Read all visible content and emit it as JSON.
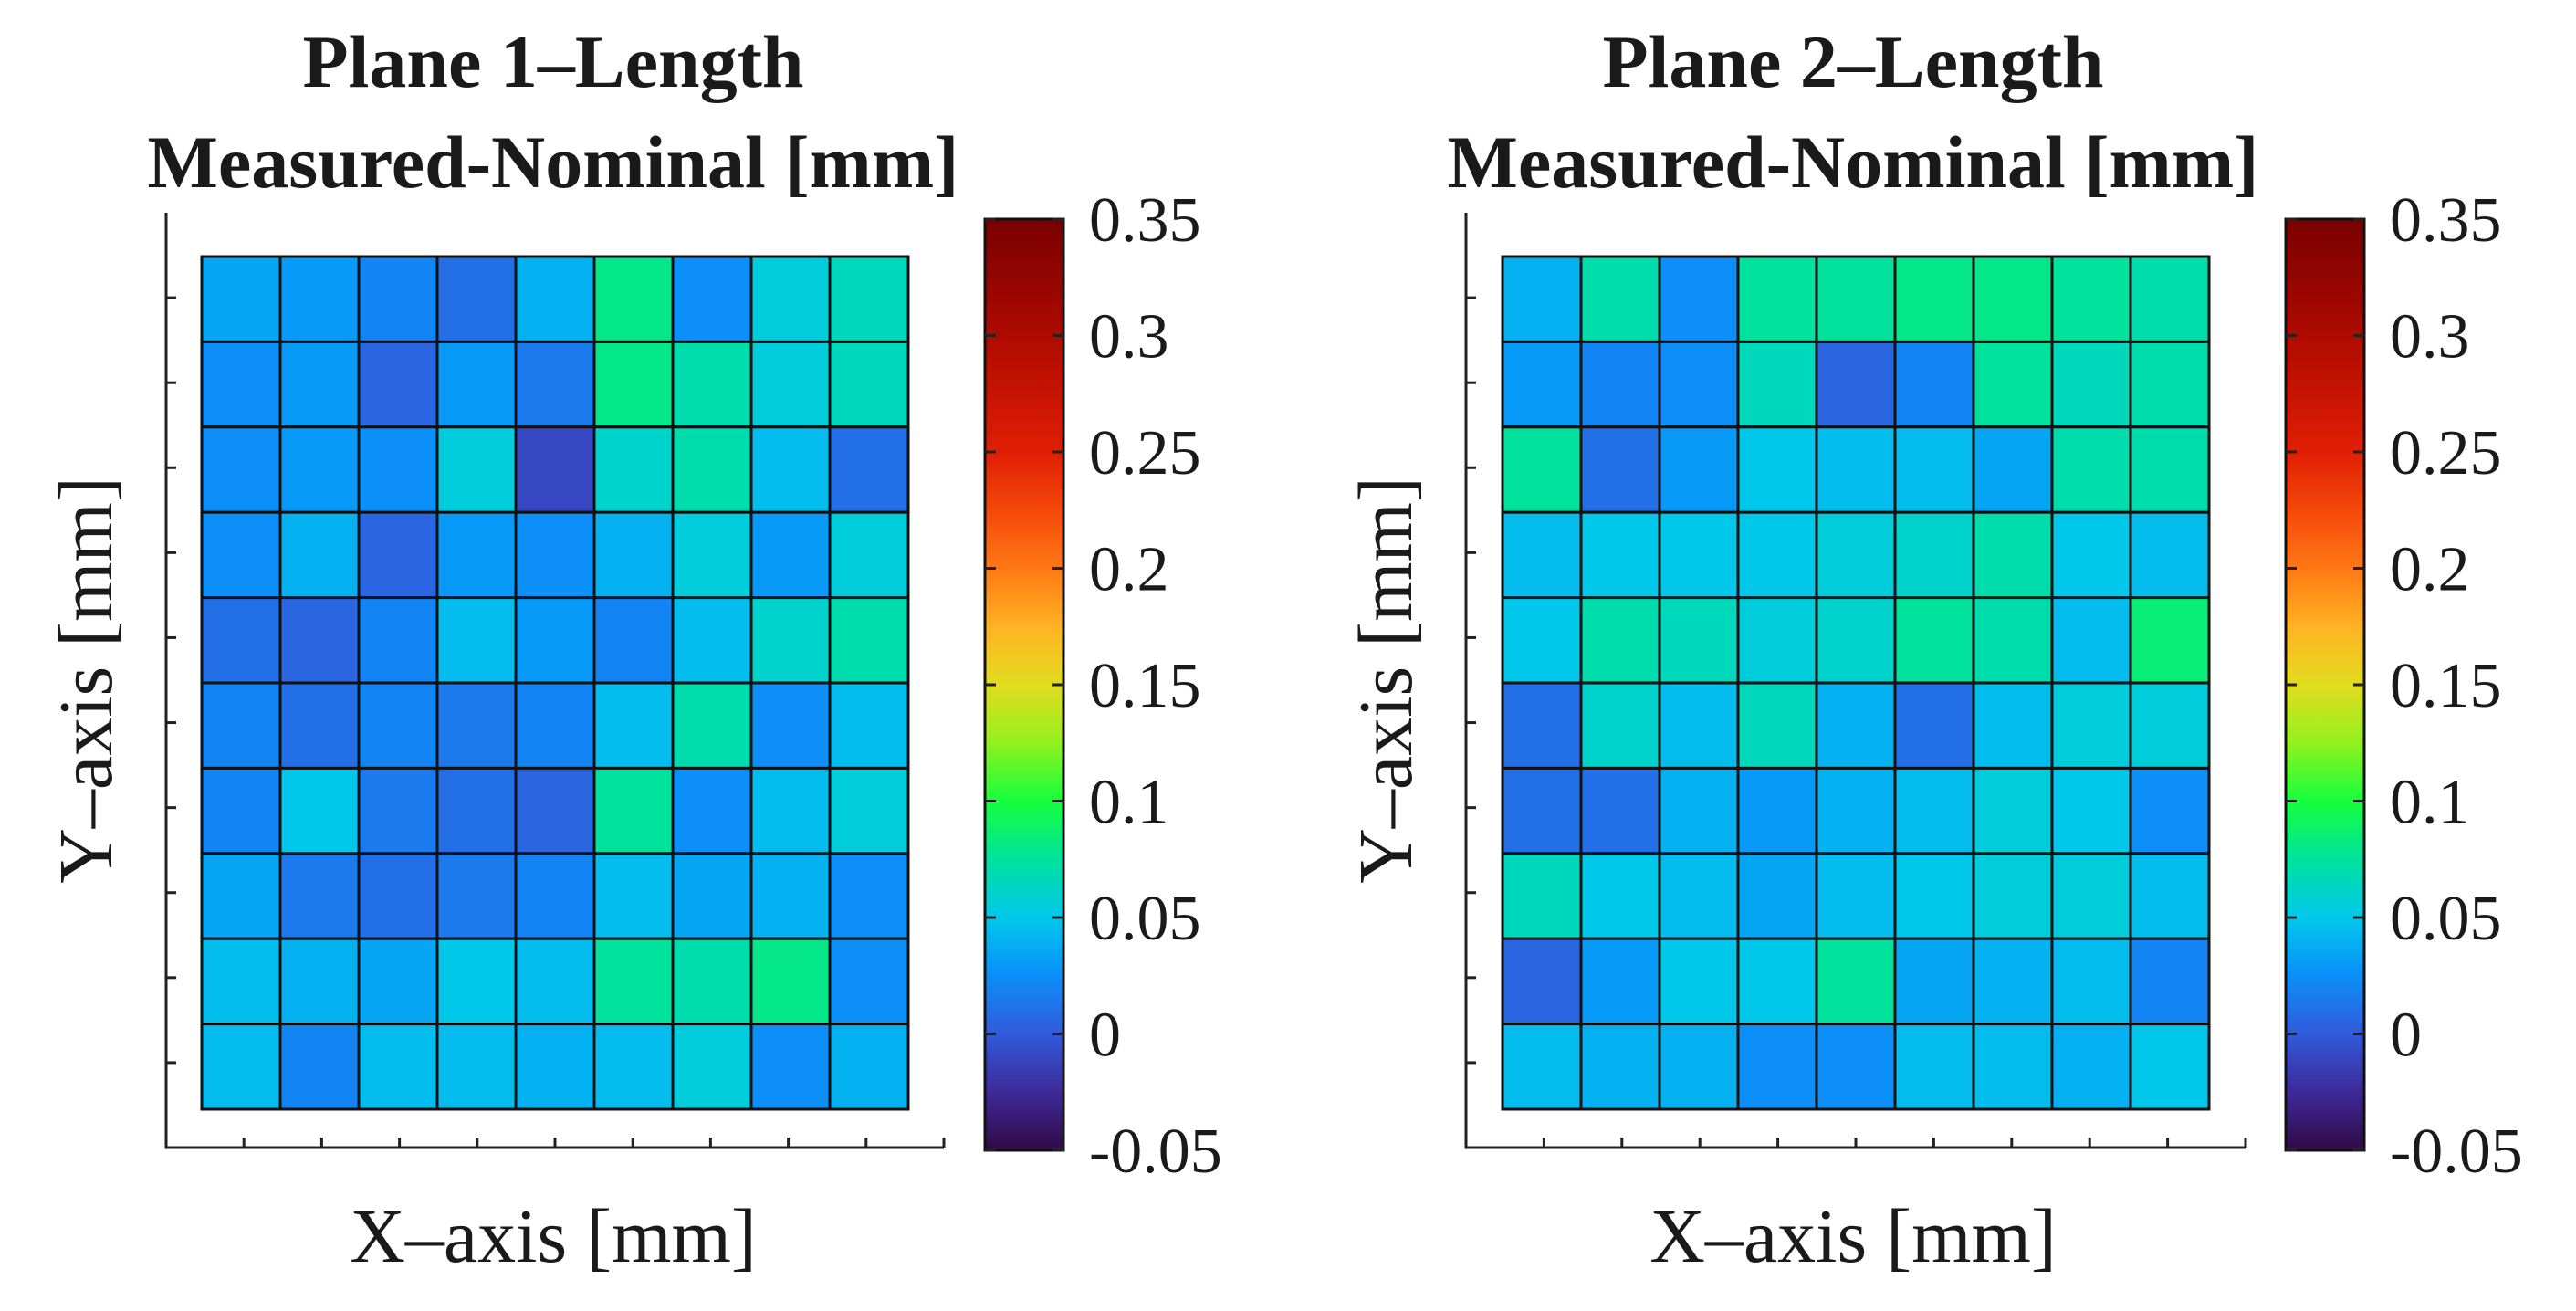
{
  "chart_data": [
    {
      "type": "heatmap",
      "title_line1": "Plane 1–Length",
      "title_line2": "Measured-Nominal [mm]",
      "xlabel": "X–axis [mm]",
      "ylabel": "Y–axis [mm]",
      "rows": 10,
      "cols": 9,
      "x_ticks": 10,
      "y_ticks": 11,
      "clim": [
        -0.05,
        0.35
      ],
      "colorbar_ticks": [
        "0.35",
        "0.3",
        "0.25",
        "0.2",
        "0.15",
        "0.1",
        "0.05",
        "0",
        "-0.05"
      ],
      "values": [
        [
          0.035,
          0.03,
          0.02,
          0.01,
          0.04,
          0.08,
          0.025,
          0.055,
          0.065
        ],
        [
          0.025,
          0.03,
          0.005,
          0.03,
          0.015,
          0.08,
          0.07,
          0.055,
          0.065
        ],
        [
          0.025,
          0.03,
          0.025,
          0.055,
          -0.01,
          0.06,
          0.07,
          0.045,
          0.01
        ],
        [
          0.025,
          0.04,
          0.005,
          0.03,
          0.025,
          0.04,
          0.055,
          0.03,
          0.055
        ],
        [
          0.01,
          0.005,
          0.02,
          0.045,
          0.03,
          0.02,
          0.045,
          0.06,
          0.07
        ],
        [
          0.02,
          0.01,
          0.02,
          0.015,
          0.02,
          0.045,
          0.07,
          0.025,
          0.045
        ],
        [
          0.02,
          0.05,
          0.015,
          0.01,
          0.005,
          0.075,
          0.025,
          0.045,
          0.055
        ],
        [
          0.035,
          0.015,
          0.01,
          0.015,
          0.02,
          0.045,
          0.035,
          0.04,
          0.025
        ],
        [
          0.045,
          0.04,
          0.035,
          0.05,
          0.045,
          0.075,
          0.07,
          0.08,
          0.025
        ],
        [
          0.045,
          0.02,
          0.045,
          0.045,
          0.04,
          0.045,
          0.055,
          0.025,
          0.04
        ]
      ]
    },
    {
      "type": "heatmap",
      "title_line1": "Plane 2–Length",
      "title_line2": "Measured-Nominal [mm]",
      "xlabel": "X–axis [mm]",
      "ylabel": "Y–axis [mm]",
      "rows": 10,
      "cols": 9,
      "x_ticks": 10,
      "y_ticks": 11,
      "clim": [
        -0.05,
        0.35
      ],
      "colorbar_ticks": [
        "0.35",
        "0.3",
        "0.25",
        "0.2",
        "0.15",
        "0.1",
        "0.05",
        "0",
        "-0.05"
      ],
      "values": [
        [
          0.04,
          0.07,
          0.025,
          0.075,
          0.075,
          0.08,
          0.08,
          0.075,
          0.07
        ],
        [
          0.03,
          0.02,
          0.025,
          0.065,
          0.005,
          0.02,
          0.075,
          0.065,
          0.07
        ],
        [
          0.075,
          0.01,
          0.03,
          0.05,
          0.045,
          0.045,
          0.035,
          0.07,
          0.07
        ],
        [
          0.045,
          0.05,
          0.05,
          0.05,
          0.055,
          0.06,
          0.07,
          0.05,
          0.045
        ],
        [
          0.05,
          0.07,
          0.065,
          0.055,
          0.06,
          0.075,
          0.07,
          0.045,
          0.085
        ],
        [
          0.01,
          0.06,
          0.045,
          0.065,
          0.04,
          0.01,
          0.045,
          0.055,
          0.055
        ],
        [
          0.01,
          0.01,
          0.04,
          0.03,
          0.04,
          0.045,
          0.055,
          0.05,
          0.025
        ],
        [
          0.065,
          0.05,
          0.045,
          0.035,
          0.045,
          0.05,
          0.055,
          0.055,
          0.045
        ],
        [
          0.005,
          0.03,
          0.05,
          0.05,
          0.075,
          0.035,
          0.04,
          0.045,
          0.02
        ],
        [
          0.045,
          0.04,
          0.04,
          0.025,
          0.025,
          0.045,
          0.045,
          0.04,
          0.05
        ]
      ]
    }
  ]
}
